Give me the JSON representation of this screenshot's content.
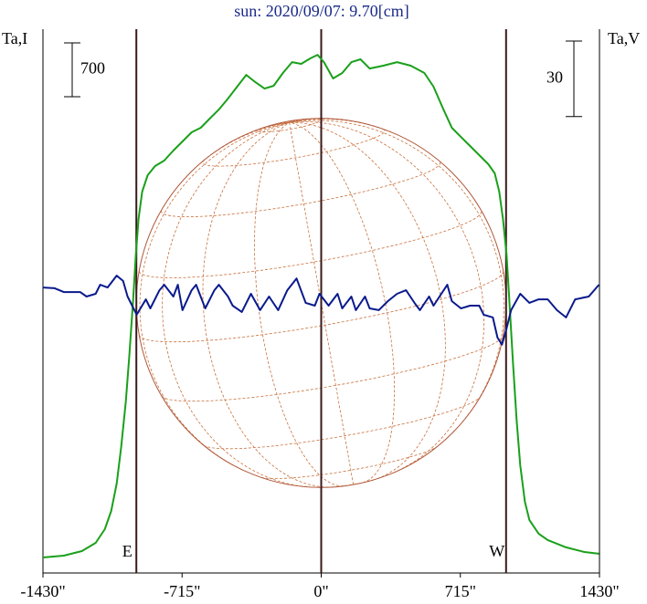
{
  "chart_data": {
    "type": "line",
    "title": "sun: 2020/09/07: 9.70[cm]",
    "y_label": "Ta,I",
    "y2_label": "Ta,V",
    "xlim": [
      -1430,
      1430
    ],
    "xticks": [
      {
        "value": -1430,
        "label": "-1430\""
      },
      {
        "value": -715,
        "label": "-715\""
      },
      {
        "value": 0,
        "label": "0\""
      },
      {
        "value": 715,
        "label": "715\""
      },
      {
        "value": 1430,
        "label": "1430\""
      }
    ],
    "ylim": [
      -214,
      6858
    ],
    "y2lim": [
      -108,
      108
    ],
    "scale_bars": [
      {
        "value": 700,
        "axis": "y"
      },
      {
        "value": 30,
        "axis": "y2"
      }
    ],
    "vlines": [
      {
        "x": -950,
        "label": "E"
      },
      {
        "x": 0
      },
      {
        "x": 950,
        "label": "W"
      }
    ],
    "disk_radius": 950,
    "series": [
      {
        "color": "#1aa01a",
        "axis": "y",
        "x": [
          -1430,
          -1323,
          -1230,
          -1159,
          -1112,
          -1079,
          -1051,
          -1028,
          -1004,
          -986,
          -967,
          -953,
          -939,
          -920,
          -892,
          -854,
          -807,
          -760,
          -713,
          -666,
          -619,
          -573,
          -526,
          -479,
          -432,
          -385,
          -338,
          -291,
          -244,
          -197,
          -150,
          -103,
          -56,
          -19,
          14,
          61,
          108,
          155,
          202,
          249,
          319,
          390,
          460,
          530,
          577,
          624,
          671,
          718,
          765,
          812,
          859,
          892,
          915,
          934,
          953,
          967,
          986,
          1004,
          1023,
          1047,
          1070,
          1117,
          1164,
          1258,
          1352,
          1427
        ],
        "values": [
          -12,
          12,
          71,
          178,
          356,
          593,
          949,
          1424,
          2017,
          2610,
          3322,
          3915,
          4390,
          4746,
          4959,
          5078,
          5149,
          5280,
          5398,
          5517,
          5576,
          5695,
          5813,
          5956,
          6110,
          6264,
          6169,
          6086,
          6122,
          6288,
          6430,
          6407,
          6478,
          6525,
          6430,
          6217,
          6288,
          6430,
          6466,
          6347,
          6383,
          6430,
          6383,
          6288,
          6110,
          5837,
          5576,
          5457,
          5339,
          5220,
          5102,
          4983,
          4746,
          4390,
          3915,
          3322,
          2491,
          1780,
          1186,
          712,
          475,
          297,
          214,
          119,
          59,
          36
        ]
      },
      {
        "color": "#0a1a8c",
        "axis": "y2",
        "x": [
          -1431,
          -1370,
          -1323,
          -1277,
          -1239,
          -1206,
          -1159,
          -1136,
          -1098,
          -1051,
          -1018,
          -995,
          -948,
          -901,
          -878,
          -831,
          -807,
          -760,
          -737,
          -713,
          -666,
          -643,
          -596,
          -549,
          -526,
          -479,
          -455,
          -408,
          -361,
          -314,
          -268,
          -221,
          -174,
          -127,
          -80,
          -33,
          -9,
          38,
          84,
          108,
          155,
          178,
          225,
          249,
          296,
          343,
          390,
          436,
          483,
          507,
          554,
          577,
          648,
          671,
          718,
          765,
          812,
          835,
          882,
          906,
          929,
          953,
          976,
          1023,
          1070,
          1117,
          1164,
          1211,
          1258,
          1305,
          1375,
          1427
        ],
        "values": [
          5.4,
          5.1,
          3.6,
          3.6,
          3.6,
          1.8,
          2.9,
          6.5,
          5.4,
          10.1,
          8.0,
          1.8,
          -5.4,
          0.7,
          -2.9,
          4.3,
          6.5,
          1.8,
          6.5,
          -3.6,
          4.3,
          6.5,
          -2.9,
          4.3,
          6.5,
          1.8,
          -1.8,
          -4.3,
          2.9,
          -3.6,
          1.8,
          -3.6,
          4.3,
          9.0,
          -0.7,
          -1.8,
          2.9,
          -1.8,
          2.9,
          -2.9,
          1.8,
          -3.6,
          1.8,
          -2.9,
          -3.6,
          0,
          2.9,
          4.3,
          -1.1,
          -3.6,
          1.8,
          -1.8,
          6.5,
          0,
          -2.9,
          -1.8,
          -1.8,
          -5.4,
          -6.5,
          -14.5,
          -17.3,
          -10.8,
          -3.6,
          2.9,
          -0.7,
          0.7,
          0.7,
          -3.6,
          -6.5,
          0.7,
          1.8,
          6.5
        ]
      }
    ]
  }
}
